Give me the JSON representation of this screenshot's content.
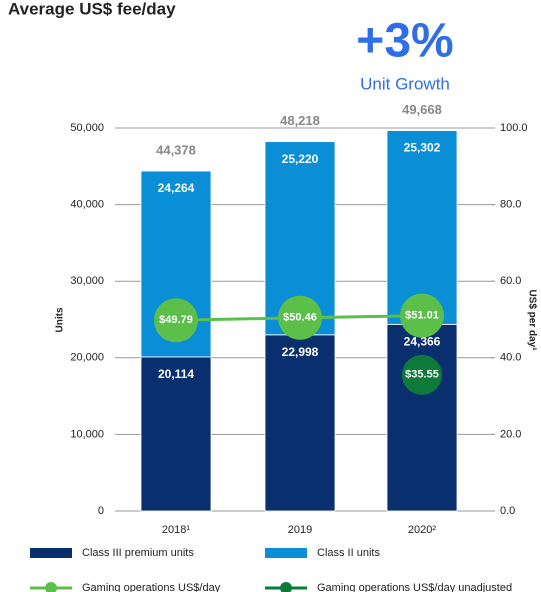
{
  "chart_data": {
    "type": "bar",
    "title": "Average US$ fee/day",
    "annotation": "+3%",
    "annotation_label": "Unit Growth",
    "categories": [
      "2018¹",
      "2019",
      "2020²"
    ],
    "series": [
      {
        "name": "Class III premium units",
        "color": "#0a2f6e",
        "values": [
          20114,
          22998,
          24366
        ],
        "value_labels": [
          "20,114",
          "22,998",
          "24,366"
        ]
      },
      {
        "name": "Class II units",
        "color": "#0a8fd6",
        "values": [
          24264,
          25220,
          25302
        ],
        "value_labels": [
          "24,264",
          "25,220",
          "25,302"
        ]
      },
      {
        "name": "Gaming operations US$/day",
        "type": "line",
        "axis": "y2",
        "color": "#5cbf4a",
        "values": [
          49.79,
          50.46,
          51.01
        ],
        "value_labels": [
          "$49.79",
          "$50.46",
          "$51.01"
        ]
      },
      {
        "name": "Gaming operations US$/day unadjusted",
        "type": "dot",
        "axis": "y2",
        "color": "#0d7a3a",
        "values": [
          null,
          null,
          35.55
        ],
        "value_labels": [
          null,
          null,
          "$35.55"
        ]
      }
    ],
    "totals": [
      44378,
      48218,
      49668
    ],
    "total_labels": [
      "44,378",
      "48,218",
      "49,668"
    ],
    "ylabel": "Units",
    "y2label": "US$ per day¹",
    "ylim": [
      0,
      50000
    ],
    "yticks": [
      0,
      {
        "value": 10000,
        "label": "10,000"
      },
      {
        "value": 20000,
        "label": "20,000"
      },
      {
        "value": 30000,
        "label": "30,000"
      },
      {
        "value": 40000,
        "label": "40,000"
      },
      {
        "value": 50000,
        "label": "50,000"
      }
    ],
    "y2lim": [
      0,
      100
    ],
    "y2ticks": [
      {
        "value": 0,
        "label": "0.0"
      },
      {
        "value": 20,
        "label": "20.0"
      },
      {
        "value": 40,
        "label": "40.0"
      },
      {
        "value": 60,
        "label": "60.0"
      },
      {
        "value": 80,
        "label": "80.0"
      },
      {
        "value": 100,
        "label": "100.0"
      }
    ],
    "grid": true
  }
}
